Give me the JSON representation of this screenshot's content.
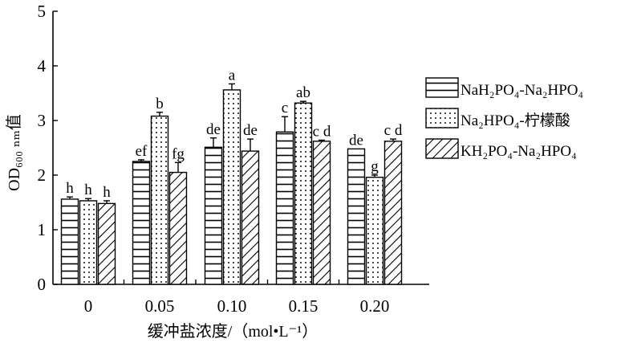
{
  "chart_data": {
    "type": "bar",
    "categories": [
      "0",
      "0.05",
      "0.10",
      "0.15",
      "0.20"
    ],
    "xlabel": "缓冲盐浓度/（mol•L⁻¹）",
    "ylabel": "OD₆₀₀ ₙₘ值",
    "ylim": [
      0,
      5
    ],
    "yticks": [
      "0",
      "1",
      "2",
      "3",
      "4",
      "5"
    ],
    "grid": false,
    "legend_position": "right",
    "series": [
      {
        "name": "NaH₂PO₄-Na₂HPO₄",
        "pattern": "horizontal-lines",
        "values": [
          1.56,
          2.25,
          2.51,
          2.79,
          2.48
        ],
        "errors": [
          0.04,
          0.03,
          0.17,
          0.28,
          0.0
        ],
        "labels": [
          "h",
          "ef",
          "de",
          "c",
          "de"
        ]
      },
      {
        "name": "Na₂HPO₄-柠檬酸",
        "pattern": "dots",
        "values": [
          1.53,
          3.08,
          3.56,
          3.32,
          1.96
        ],
        "errors": [
          0.04,
          0.07,
          0.11,
          0.03,
          0.04
        ],
        "labels": [
          "h",
          "b",
          "a",
          "ab",
          "g"
        ]
      },
      {
        "name": "KH₂PO₄-Na₂HPO₄",
        "pattern": "diagonal-lines",
        "values": [
          1.48,
          2.05,
          2.44,
          2.62,
          2.62
        ],
        "errors": [
          0.05,
          0.18,
          0.22,
          0.02,
          0.04
        ],
        "labels": [
          "h",
          "fg",
          "de",
          "c d",
          "c d"
        ]
      }
    ]
  }
}
